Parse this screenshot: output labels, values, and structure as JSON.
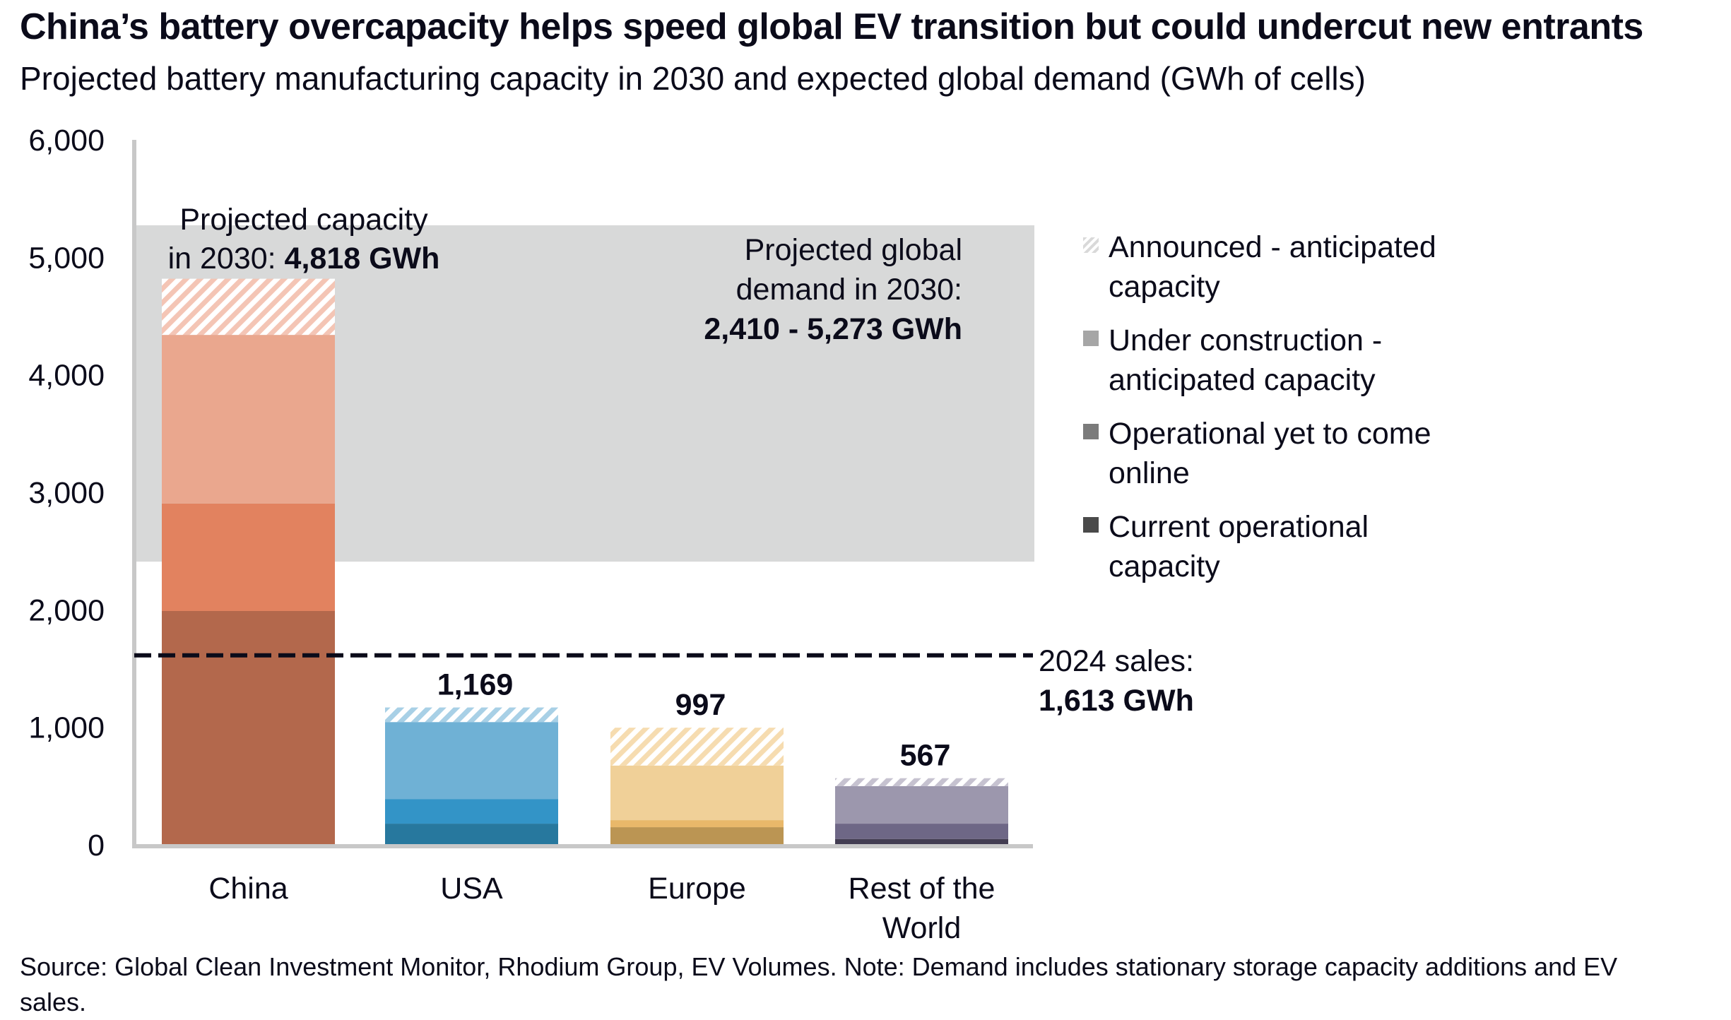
{
  "title": "China’s battery overcapacity helps speed global EV transition but could undercut new entrants",
  "subtitle": "Projected battery manufacturing capacity in 2030 and expected global demand (GWh of cells)",
  "footer": "Source: Global Clean Investment Monitor, Rhodium Group, EV Volumes. Note: Demand includes stationary storage capacity additions and EV sales.",
  "legend": [
    {
      "label": "Announced - anticipated capacity",
      "swatch": "hatched",
      "color": "#d9d9d9"
    },
    {
      "label": "Under construction - anticipated capacity",
      "swatch": "solid",
      "color": "#a6a6a6"
    },
    {
      "label": "Operational yet to come online",
      "swatch": "solid",
      "color": "#7b7b7b"
    },
    {
      "label": "Current operational capacity",
      "swatch": "solid",
      "color": "#4a4a4a"
    }
  ],
  "chart_data": {
    "type": "bar",
    "stacked": true,
    "title": "China’s battery overcapacity helps speed global EV transition but could undercut new entrants",
    "subtitle": "Projected battery manufacturing capacity in 2030 and expected global demand (GWh of cells)",
    "xlabel": "",
    "ylabel": "GWh of cells",
    "ylim": [
      0,
      6000
    ],
    "yticks": [
      0,
      1000,
      2000,
      3000,
      4000,
      5000,
      6000
    ],
    "ytick_labels": [
      "0",
      "1,000",
      "2,000",
      "3,000",
      "4,000",
      "5,000",
      "6,000"
    ],
    "grid": false,
    "legend_position": "right",
    "categories": [
      "China",
      "USA",
      "Europe",
      "Rest of the World"
    ],
    "series": [
      {
        "name": "Current operational capacity",
        "values": [
          1990,
          180,
          150,
          50
        ]
      },
      {
        "name": "Operational yet to come online",
        "values": [
          915,
          210,
          60,
          130
        ]
      },
      {
        "name": "Under construction - anticipated capacity",
        "values": [
          1435,
          655,
          465,
          320
        ]
      },
      {
        "name": "Announced - anticipated capacity",
        "values": [
          478,
          124,
          322,
          67
        ]
      }
    ],
    "totals": [
      4818,
      1169,
      997,
      567
    ],
    "total_labels": [
      "",
      "1,169",
      "997",
      "567"
    ],
    "category_colors": [
      {
        "current": "#b3684c",
        "yet": "#e2825f",
        "under": "#eaa78e",
        "announced": "#f4c5b5"
      },
      {
        "current": "#27789e",
        "yet": "#3394c7",
        "under": "#6fb1d5",
        "announced": "#a8d0e6"
      },
      {
        "current": "#bb9553",
        "yet": "#e9b86a",
        "under": "#f0d098",
        "announced": "#f6dcb0"
      },
      {
        "current": "#433d52",
        "yet": "#6e6786",
        "under": "#9c97ad",
        "announced": "#c6c2d0"
      }
    ],
    "demand_band": {
      "low": 2410,
      "high": 5273,
      "color": "#d8d9d9"
    },
    "sales_2024": 1613,
    "annotations": {
      "china_capacity": {
        "line1": "Projected capacity",
        "line2_prefix": "in 2030: ",
        "line2_bold": "4,818 GWh"
      },
      "demand": {
        "line1": "Projected global",
        "line2": "demand in 2030:",
        "line3": "2,410 - 5,273 GWh"
      },
      "sales": {
        "line1": "2024 sales:",
        "line2": "1,613 GWh"
      }
    }
  }
}
